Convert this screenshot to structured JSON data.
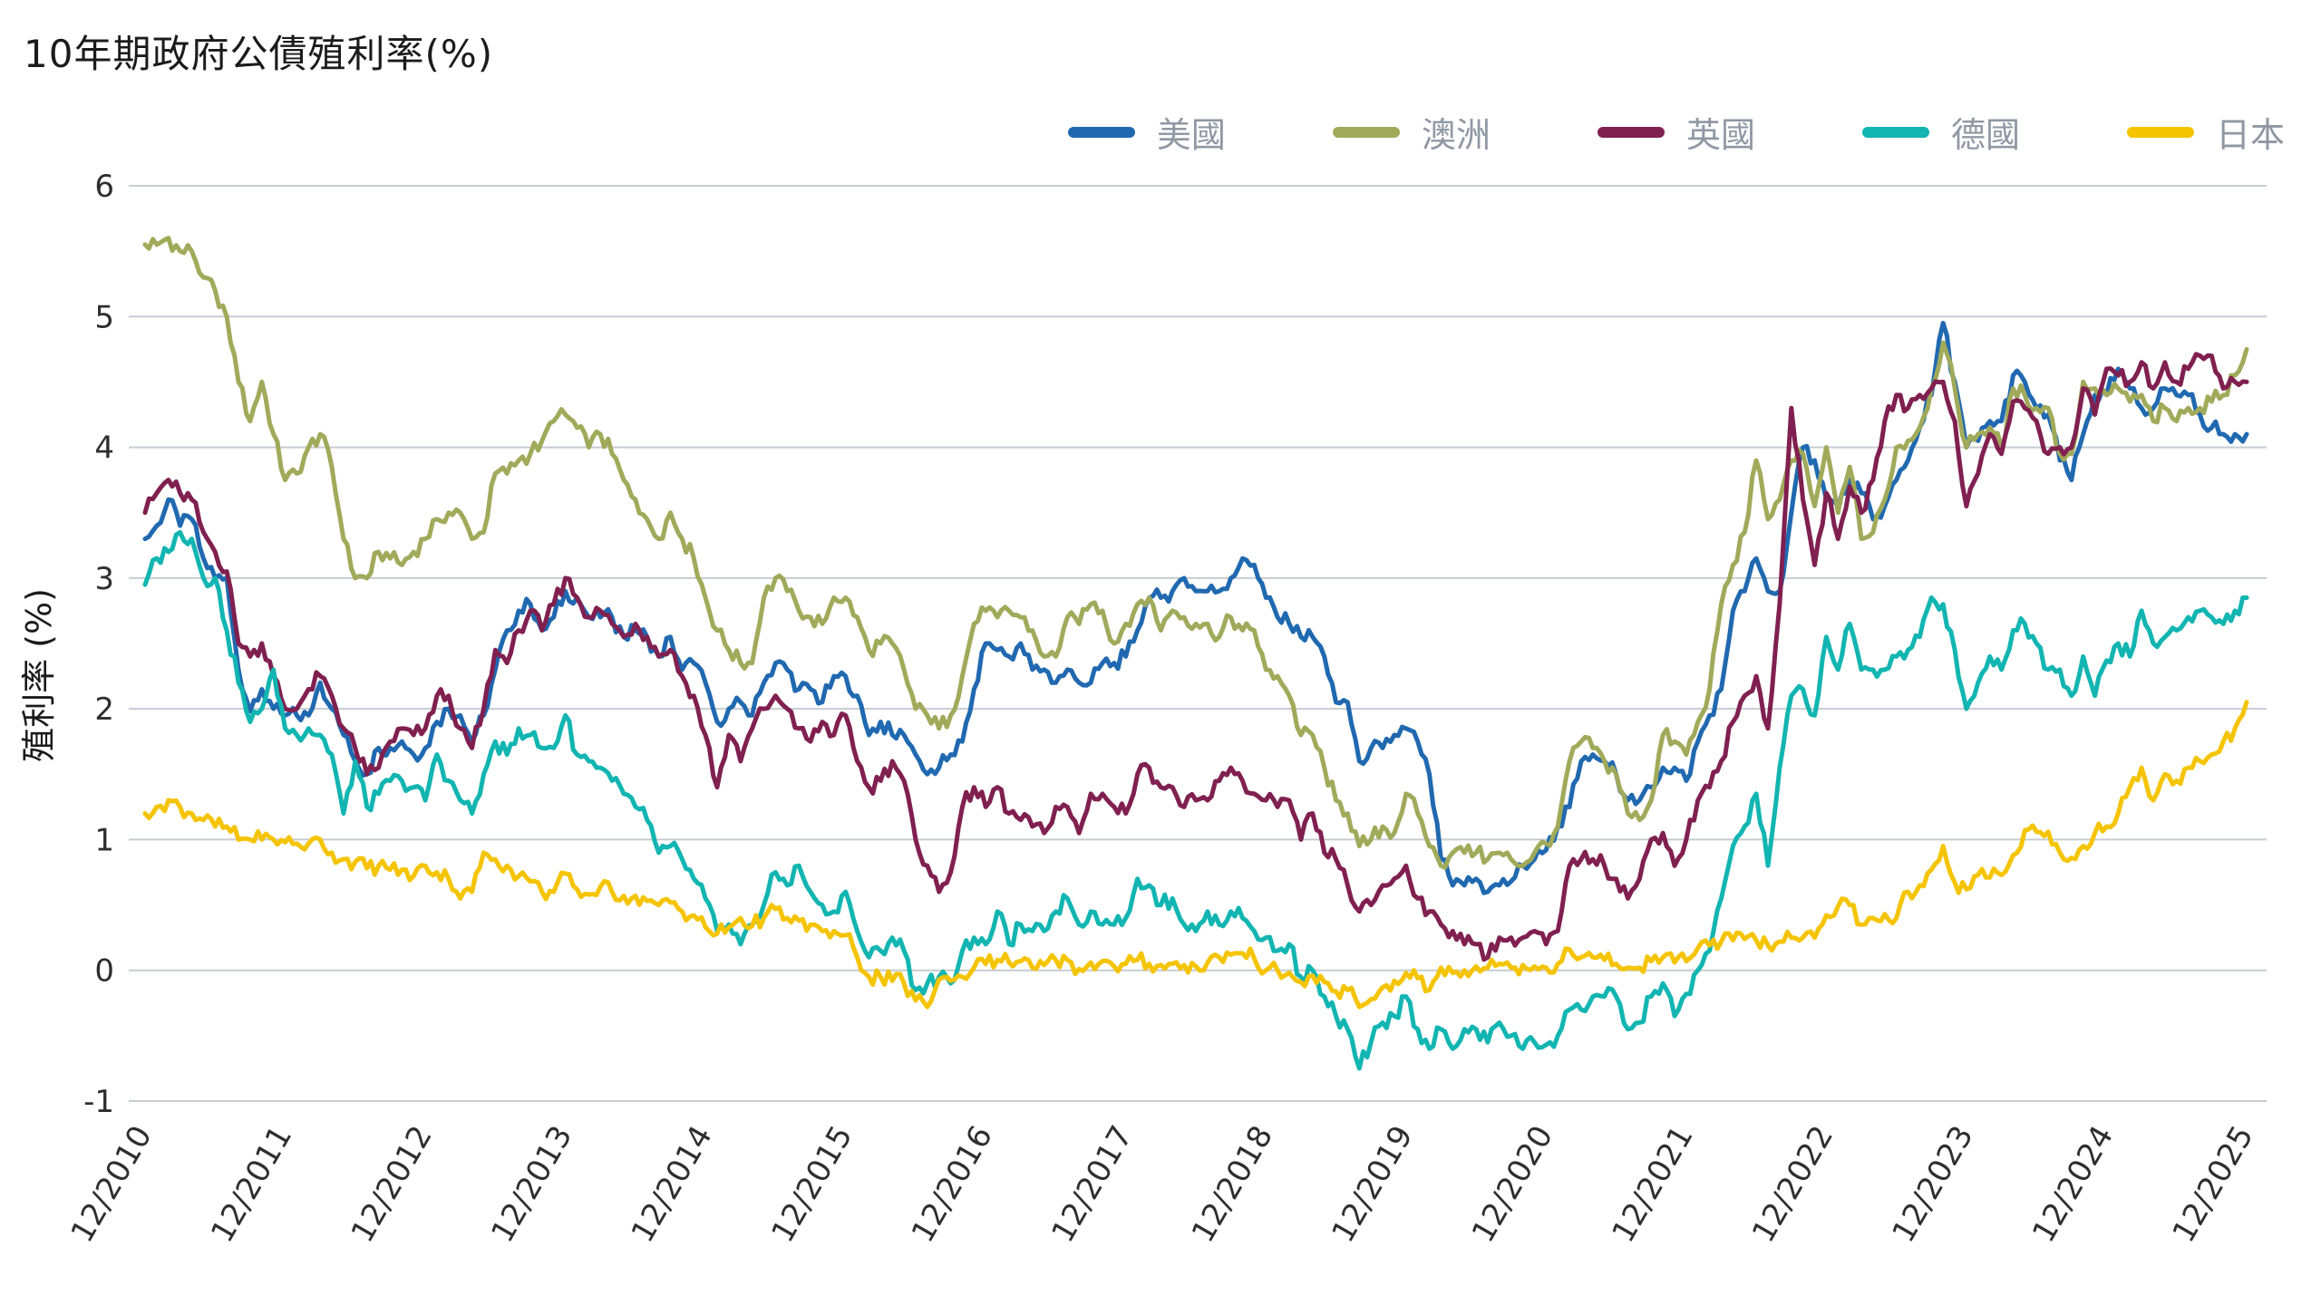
{
  "chart_data": {
    "type": "line",
    "title": "10年期政府公債殖利率(%)",
    "ylabel": "殖利率 (%)",
    "xlabel": "",
    "x_start": "2010-12",
    "x_interval": "monthly",
    "x_tick_labels": [
      "12/2010",
      "12/2011",
      "12/2012",
      "12/2013",
      "12/2014",
      "12/2015",
      "12/2016",
      "12/2017",
      "12/2018",
      "12/2019",
      "12/2020",
      "12/2021",
      "12/2022",
      "12/2023",
      "12/2024",
      "12/2025"
    ],
    "ylim": [
      -1,
      6
    ],
    "y_ticks": [
      6,
      5,
      4,
      3,
      2,
      1,
      0,
      -1
    ],
    "grid": true,
    "legend_position": "top-right",
    "grid_color": "#c7ccd1",
    "tick_color": "#2e2e2e",
    "series": [
      {
        "name": "美國",
        "color": "#2069b0",
        "values": [
          3.3,
          3.4,
          3.6,
          3.4,
          3.45,
          3.15,
          3.0,
          3.0,
          2.3,
          1.98,
          2.15,
          2.0,
          1.95,
          1.95,
          1.95,
          2.2,
          2.0,
          1.8,
          1.6,
          1.5,
          1.7,
          1.7,
          1.75,
          1.65,
          1.7,
          1.9,
          2.0,
          1.95,
          1.75,
          1.95,
          2.3,
          2.6,
          2.75,
          2.8,
          2.6,
          2.7,
          2.9,
          2.85,
          2.7,
          2.7,
          2.7,
          2.55,
          2.6,
          2.55,
          2.4,
          2.55,
          2.3,
          2.35,
          2.2,
          1.9,
          2.0,
          2.05,
          1.95,
          2.2,
          2.35,
          2.3,
          2.15,
          2.15,
          2.05,
          2.25,
          2.25,
          2.1,
          1.8,
          1.9,
          1.8,
          1.8,
          1.65,
          1.5,
          1.55,
          1.65,
          1.75,
          2.15,
          2.5,
          2.45,
          2.4,
          2.5,
          2.3,
          2.3,
          2.2,
          2.3,
          2.2,
          2.2,
          2.35,
          2.35,
          2.4,
          2.6,
          2.85,
          2.85,
          2.9,
          3.0,
          2.9,
          2.9,
          2.9,
          3.0,
          3.15,
          3.1,
          2.85,
          2.7,
          2.65,
          2.55,
          2.55,
          2.4,
          2.05,
          2.05,
          1.6,
          1.7,
          1.7,
          1.8,
          1.85,
          1.75,
          1.5,
          0.85,
          0.65,
          0.65,
          0.7,
          0.6,
          0.65,
          0.68,
          0.8,
          0.85,
          0.92,
          1.1,
          1.25,
          1.6,
          1.65,
          1.6,
          1.5,
          1.3,
          1.3,
          1.4,
          1.55,
          1.55,
          1.45,
          1.75,
          1.95,
          2.15,
          2.75,
          2.9,
          3.15,
          2.9,
          2.9,
          3.5,
          4.0,
          3.9,
          3.6,
          3.55,
          3.75,
          3.65,
          3.45,
          3.55,
          3.75,
          3.9,
          4.15,
          4.4,
          4.95,
          4.5,
          4.0,
          4.05,
          4.2,
          4.2,
          4.55,
          4.5,
          4.3,
          4.25,
          3.9,
          3.75,
          4.1,
          4.4,
          4.4,
          4.6,
          4.45,
          4.3,
          4.3,
          4.45,
          4.4,
          4.4,
          4.25,
          4.15,
          4.1,
          4.1,
          4.1
        ]
      },
      {
        "name": "澳洲",
        "color": "#a0aa5a",
        "values": [
          5.55,
          5.55,
          5.6,
          5.5,
          5.5,
          5.3,
          5.2,
          5.0,
          4.5,
          4.2,
          4.5,
          4.1,
          3.75,
          3.8,
          4.0,
          4.1,
          3.85,
          3.3,
          3.0,
          3.0,
          3.2,
          3.15,
          3.1,
          3.2,
          3.3,
          3.45,
          3.5,
          3.5,
          3.3,
          3.35,
          3.8,
          3.8,
          3.9,
          3.95,
          4.05,
          4.2,
          4.25,
          4.15,
          4.0,
          4.1,
          3.95,
          3.75,
          3.6,
          3.45,
          3.3,
          3.5,
          3.3,
          3.15,
          2.85,
          2.6,
          2.45,
          2.35,
          2.35,
          2.85,
          3.0,
          2.9,
          2.75,
          2.7,
          2.65,
          2.85,
          2.85,
          2.7,
          2.45,
          2.5,
          2.5,
          2.3,
          2.0,
          1.95,
          1.85,
          1.95,
          2.25,
          2.65,
          2.75,
          2.7,
          2.75,
          2.7,
          2.6,
          2.4,
          2.4,
          2.7,
          2.65,
          2.8,
          2.75,
          2.5,
          2.65,
          2.8,
          2.85,
          2.6,
          2.75,
          2.7,
          2.65,
          2.65,
          2.55,
          2.7,
          2.6,
          2.6,
          2.3,
          2.25,
          2.1,
          1.8,
          1.8,
          1.55,
          1.3,
          1.2,
          0.95,
          1.0,
          1.1,
          1.05,
          1.35,
          1.2,
          0.95,
          0.8,
          0.9,
          0.9,
          0.9,
          0.85,
          0.9,
          0.85,
          0.8,
          0.9,
          0.97,
          1.1,
          1.6,
          1.75,
          1.7,
          1.6,
          1.5,
          1.2,
          1.15,
          1.3,
          1.8,
          1.75,
          1.65,
          1.9,
          2.15,
          2.8,
          3.1,
          3.35,
          3.9,
          3.45,
          3.6,
          3.9,
          3.95,
          3.55,
          4.0,
          3.5,
          3.85,
          3.3,
          3.35,
          3.6,
          4.0,
          4.05,
          4.15,
          4.45,
          4.8,
          4.45,
          4.0,
          4.1,
          4.15,
          4.0,
          4.45,
          4.4,
          4.3,
          4.3,
          3.95,
          3.95,
          4.5,
          4.45,
          4.4,
          4.45,
          4.35,
          4.4,
          4.2,
          4.3,
          4.2,
          4.3,
          4.3,
          4.35,
          4.4,
          4.55,
          4.75
        ]
      },
      {
        "name": "英國",
        "color": "#802050",
        "values": [
          3.5,
          3.65,
          3.75,
          3.65,
          3.6,
          3.35,
          3.2,
          3.05,
          2.5,
          2.4,
          2.5,
          2.25,
          2.0,
          2.0,
          2.15,
          2.25,
          2.1,
          1.85,
          1.7,
          1.5,
          1.55,
          1.75,
          1.85,
          1.8,
          1.85,
          2.1,
          2.1,
          1.85,
          1.7,
          2.0,
          2.45,
          2.35,
          2.6,
          2.75,
          2.6,
          2.8,
          3.0,
          2.85,
          2.7,
          2.75,
          2.65,
          2.55,
          2.65,
          2.55,
          2.4,
          2.45,
          2.25,
          2.1,
          1.8,
          1.4,
          1.8,
          1.6,
          1.85,
          2.0,
          2.1,
          2.0,
          1.85,
          1.75,
          1.9,
          1.8,
          1.95,
          1.6,
          1.4,
          1.45,
          1.6,
          1.45,
          1.0,
          0.8,
          0.6,
          0.75,
          1.25,
          1.4,
          1.25,
          1.4,
          1.2,
          1.15,
          1.1,
          1.05,
          1.25,
          1.25,
          1.05,
          1.35,
          1.35,
          1.25,
          1.2,
          1.5,
          1.55,
          1.4,
          1.4,
          1.25,
          1.3,
          1.3,
          1.45,
          1.55,
          1.45,
          1.35,
          1.3,
          1.25,
          1.3,
          1.0,
          1.2,
          0.9,
          0.85,
          0.65,
          0.45,
          0.5,
          0.65,
          0.7,
          0.8,
          0.55,
          0.45,
          0.35,
          0.3,
          0.2,
          0.2,
          0.1,
          0.25,
          0.25,
          0.25,
          0.3,
          0.2,
          0.3,
          0.8,
          0.85,
          0.85,
          0.8,
          0.7,
          0.55,
          0.7,
          1.0,
          1.05,
          0.8,
          1.0,
          1.3,
          1.4,
          1.6,
          1.9,
          2.1,
          2.25,
          1.85,
          2.8,
          4.3,
          3.6,
          3.1,
          3.65,
          3.3,
          3.7,
          3.5,
          3.75,
          4.2,
          4.4,
          4.3,
          4.4,
          4.45,
          4.5,
          4.2,
          3.55,
          3.8,
          4.1,
          3.95,
          4.35,
          4.3,
          4.2,
          3.95,
          4.0,
          4.0,
          4.45,
          4.25,
          4.6,
          4.55,
          4.5,
          4.65,
          4.45,
          4.65,
          4.5,
          4.6,
          4.7,
          4.7,
          4.45,
          4.5,
          4.5
        ]
      },
      {
        "name": "德國",
        "color": "#12b5b1",
        "values": [
          2.95,
          3.15,
          3.2,
          3.35,
          3.3,
          3.0,
          3.0,
          2.6,
          2.2,
          1.9,
          2.0,
          2.3,
          1.85,
          1.8,
          1.85,
          1.8,
          1.65,
          1.2,
          1.6,
          1.25,
          1.35,
          1.45,
          1.45,
          1.4,
          1.3,
          1.65,
          1.45,
          1.3,
          1.2,
          1.5,
          1.75,
          1.65,
          1.85,
          1.8,
          1.7,
          1.7,
          1.95,
          1.65,
          1.6,
          1.55,
          1.45,
          1.35,
          1.25,
          1.15,
          0.9,
          0.95,
          0.85,
          0.7,
          0.55,
          0.3,
          0.35,
          0.2,
          0.35,
          0.5,
          0.75,
          0.65,
          0.8,
          0.6,
          0.5,
          0.45,
          0.6,
          0.3,
          0.1,
          0.15,
          0.25,
          0.15,
          -0.15,
          -0.1,
          -0.05,
          -0.1,
          0.15,
          0.25,
          0.2,
          0.45,
          0.2,
          0.35,
          0.3,
          0.3,
          0.45,
          0.55,
          0.35,
          0.45,
          0.35,
          0.35,
          0.4,
          0.7,
          0.65,
          0.5,
          0.55,
          0.35,
          0.3,
          0.45,
          0.35,
          0.45,
          0.4,
          0.3,
          0.25,
          0.15,
          0.2,
          -0.05,
          0.0,
          -0.2,
          -0.35,
          -0.45,
          -0.75,
          -0.55,
          -0.4,
          -0.35,
          -0.2,
          -0.45,
          -0.6,
          -0.45,
          -0.6,
          -0.45,
          -0.45,
          -0.55,
          -0.4,
          -0.5,
          -0.6,
          -0.55,
          -0.57,
          -0.5,
          -0.3,
          -0.3,
          -0.2,
          -0.2,
          -0.2,
          -0.45,
          -0.4,
          -0.2,
          -0.1,
          -0.35,
          -0.18,
          0.0,
          0.15,
          0.55,
          0.95,
          1.1,
          1.35,
          0.8,
          1.55,
          2.1,
          2.15,
          1.95,
          2.55,
          2.3,
          2.65,
          2.3,
          2.3,
          2.3,
          2.4,
          2.45,
          2.55,
          2.85,
          2.8,
          2.45,
          2.0,
          2.2,
          2.4,
          2.3,
          2.6,
          2.65,
          2.5,
          2.3,
          2.3,
          2.1,
          2.4,
          2.1,
          2.37,
          2.5,
          2.4,
          2.75,
          2.5,
          2.55,
          2.6,
          2.7,
          2.75,
          2.7,
          2.65,
          2.75,
          2.85
        ]
      },
      {
        "name": "日本",
        "color": "#f5c400",
        "values": [
          1.2,
          1.25,
          1.3,
          1.25,
          1.2,
          1.15,
          1.1,
          1.1,
          1.0,
          1.0,
          1.0,
          1.0,
          0.98,
          0.97,
          0.97,
          1.0,
          0.9,
          0.85,
          0.83,
          0.78,
          0.8,
          0.77,
          0.77,
          0.72,
          0.8,
          0.75,
          0.7,
          0.55,
          0.6,
          0.9,
          0.85,
          0.8,
          0.72,
          0.68,
          0.6,
          0.6,
          0.74,
          0.62,
          0.58,
          0.64,
          0.6,
          0.57,
          0.57,
          0.53,
          0.5,
          0.52,
          0.45,
          0.42,
          0.33,
          0.28,
          0.33,
          0.4,
          0.34,
          0.4,
          0.47,
          0.4,
          0.38,
          0.35,
          0.3,
          0.3,
          0.27,
          0.1,
          -0.05,
          -0.05,
          -0.08,
          -0.1,
          -0.23,
          -0.28,
          -0.07,
          -0.08,
          -0.05,
          0.02,
          0.05,
          0.08,
          0.06,
          0.07,
          0.02,
          0.04,
          0.08,
          0.08,
          0.01,
          0.06,
          0.07,
          0.03,
          0.05,
          0.08,
          0.05,
          0.04,
          0.05,
          0.04,
          0.03,
          0.06,
          0.1,
          0.12,
          0.13,
          0.09,
          0.0,
          0.0,
          -0.02,
          -0.09,
          -0.04,
          -0.09,
          -0.16,
          -0.15,
          -0.28,
          -0.22,
          -0.13,
          -0.08,
          -0.02,
          -0.06,
          -0.15,
          0.02,
          -0.02,
          0.0,
          0.03,
          0.02,
          0.05,
          0.02,
          0.04,
          0.03,
          0.02,
          0.05,
          0.16,
          0.1,
          0.1,
          0.08,
          0.05,
          0.02,
          0.02,
          0.07,
          0.1,
          0.06,
          0.07,
          0.17,
          0.19,
          0.22,
          0.23,
          0.24,
          0.23,
          0.19,
          0.22,
          0.25,
          0.25,
          0.25,
          0.42,
          0.49,
          0.5,
          0.35,
          0.4,
          0.43,
          0.4,
          0.6,
          0.65,
          0.77,
          0.95,
          0.67,
          0.62,
          0.73,
          0.71,
          0.73,
          0.88,
          1.07,
          1.06,
          1.06,
          0.9,
          0.86,
          0.95,
          1.05,
          1.1,
          1.2,
          1.4,
          1.55,
          1.3,
          1.5,
          1.45,
          1.55,
          1.6,
          1.65,
          1.75,
          1.85,
          2.05
        ]
      }
    ]
  }
}
